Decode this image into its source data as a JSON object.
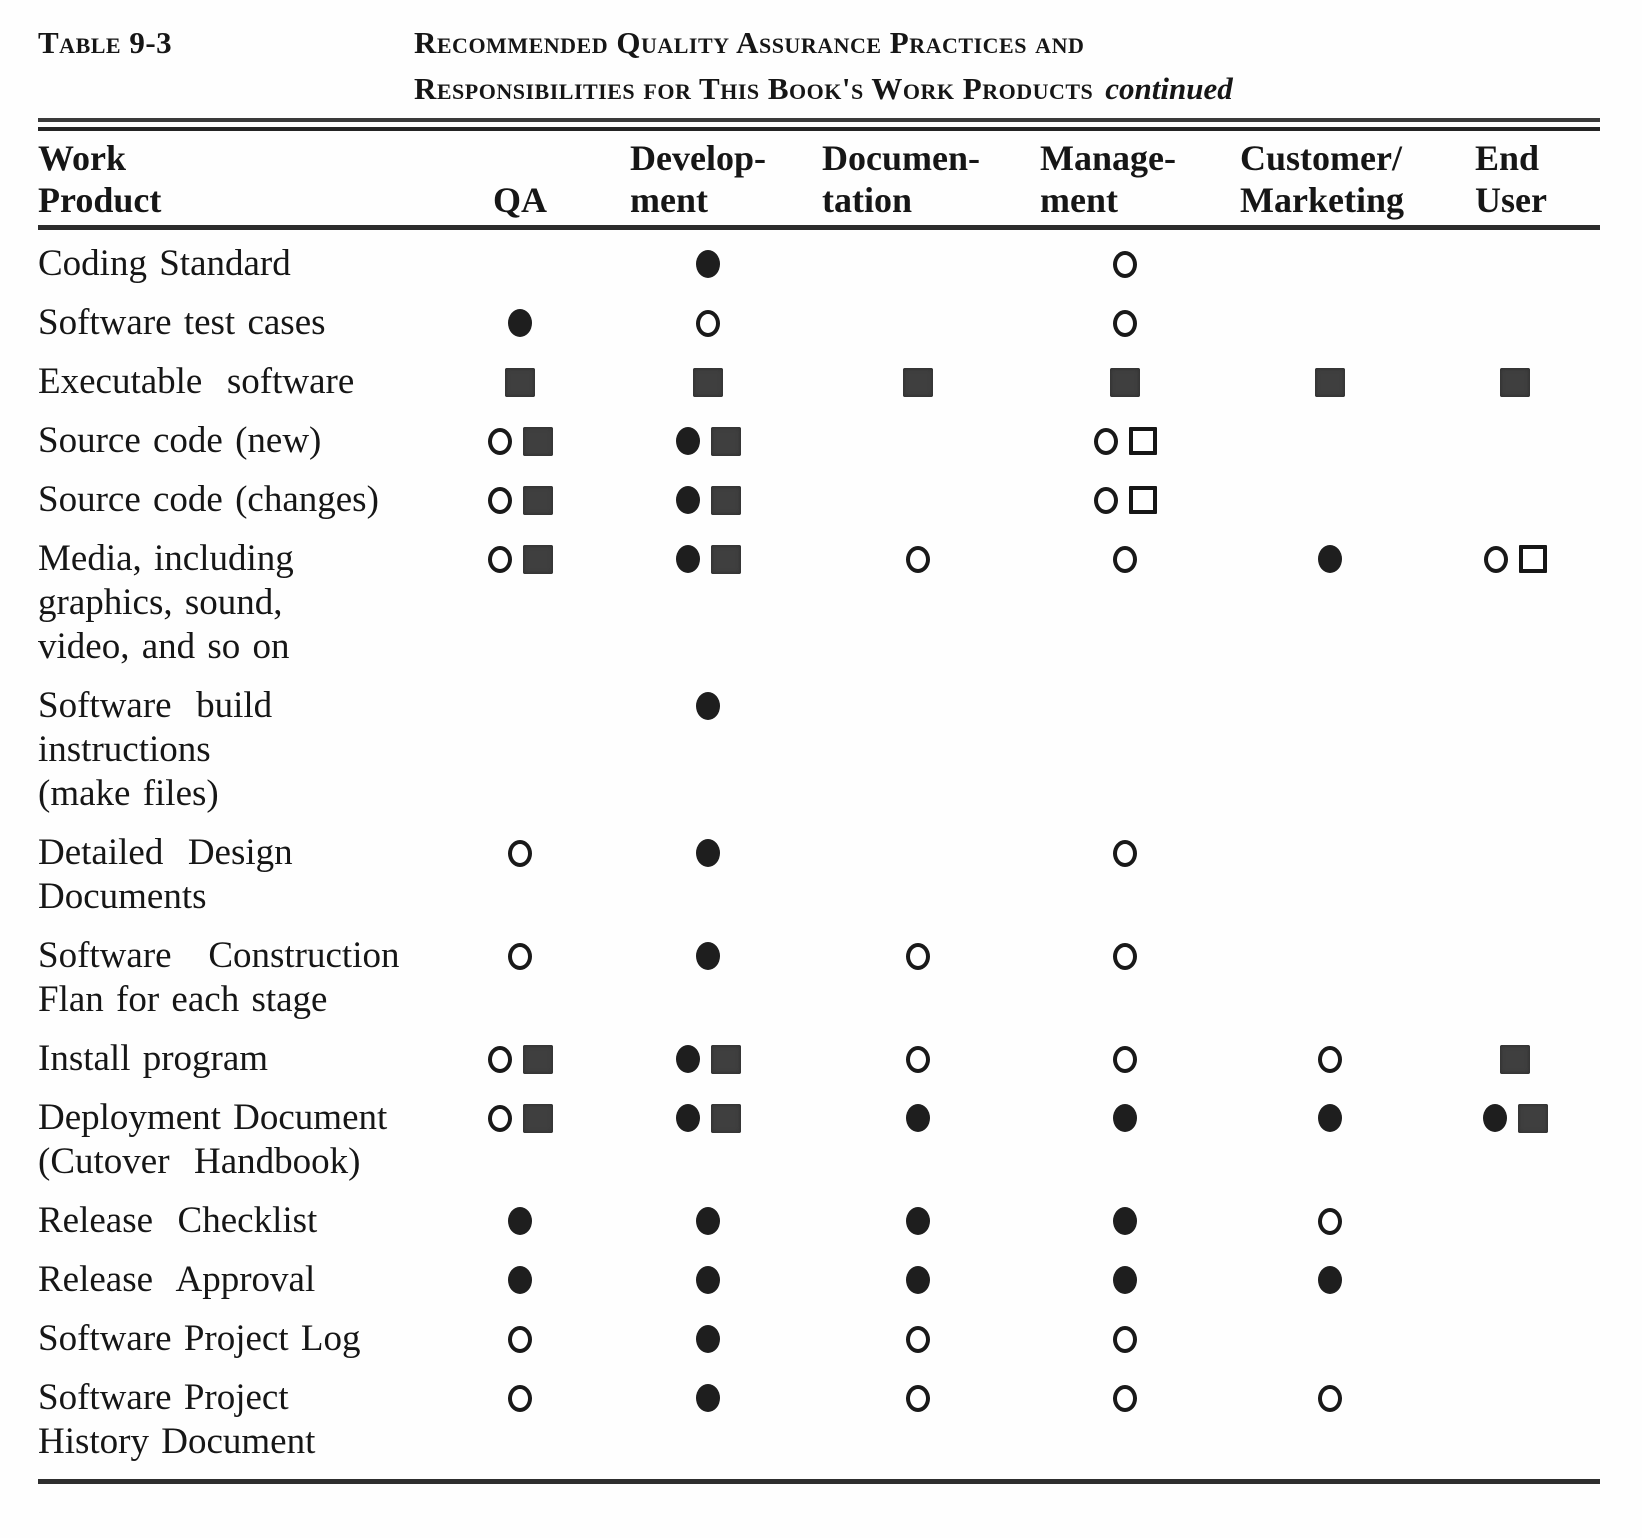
{
  "caption": {
    "label": "Table 9-3",
    "title_line1": "Recommended Quality Assurance Practices and",
    "title_line2": "Responsibilities for This Book's Work Products",
    "continued": "continued"
  },
  "header": {
    "work_product": [
      "Work",
      "Product"
    ],
    "columns": [
      {
        "id": "qa",
        "lines": [
          "QA"
        ]
      },
      {
        "id": "development",
        "lines": [
          "Develop-",
          "ment"
        ]
      },
      {
        "id": "documentation",
        "lines": [
          "Documen-",
          "tation"
        ]
      },
      {
        "id": "management",
        "lines": [
          "Manage-",
          "ment"
        ]
      },
      {
        "id": "customer_marketing",
        "lines": [
          "Customer/",
          "Marketing"
        ]
      },
      {
        "id": "end_user",
        "lines": [
          "End",
          "User"
        ]
      }
    ]
  },
  "symbols": {
    "filled-circle": "●",
    "open-circle": "○",
    "filled-square": "■",
    "open-square": "□"
  },
  "rows": [
    {
      "label_lines": [
        "Coding Standard"
      ],
      "cells": {
        "qa": [],
        "development": [
          "filled-circle"
        ],
        "documentation": [],
        "management": [
          "open-circle"
        ],
        "customer_marketing": [],
        "end_user": []
      }
    },
    {
      "label_lines": [
        "Software test cases"
      ],
      "cells": {
        "qa": [
          "filled-circle"
        ],
        "development": [
          "open-circle"
        ],
        "documentation": [],
        "management": [
          "open-circle"
        ],
        "customer_marketing": [],
        "end_user": []
      }
    },
    {
      "label_lines": [
        "Executable  software"
      ],
      "cells": {
        "qa": [
          "filled-square"
        ],
        "development": [
          "filled-square"
        ],
        "documentation": [
          "filled-square"
        ],
        "management": [
          "filled-square"
        ],
        "customer_marketing": [
          "filled-square"
        ],
        "end_user": [
          "filled-square"
        ]
      }
    },
    {
      "label_lines": [
        "Source code (new)"
      ],
      "cells": {
        "qa": [
          "open-circle",
          "filled-square"
        ],
        "development": [
          "filled-circle",
          "filled-square"
        ],
        "documentation": [],
        "management": [
          "open-circle",
          "open-square"
        ],
        "customer_marketing": [],
        "end_user": []
      }
    },
    {
      "label_lines": [
        "Source code (changes)"
      ],
      "cells": {
        "qa": [
          "open-circle",
          "filled-square"
        ],
        "development": [
          "filled-circle",
          "filled-square"
        ],
        "documentation": [],
        "management": [
          "open-circle",
          "open-square"
        ],
        "customer_marketing": [],
        "end_user": []
      }
    },
    {
      "label_lines": [
        "Media, including",
        "graphics, sound,",
        "video, and so on"
      ],
      "cells": {
        "qa": [
          "open-circle",
          "filled-square"
        ],
        "development": [
          "filled-circle",
          "filled-square"
        ],
        "documentation": [
          "open-circle"
        ],
        "management": [
          "open-circle"
        ],
        "customer_marketing": [
          "filled-circle"
        ],
        "end_user": [
          "open-circle",
          "open-square"
        ]
      }
    },
    {
      "label_lines": [
        "Software  build",
        "instructions",
        "(make files)"
      ],
      "cells": {
        "qa": [],
        "development": [
          "filled-circle"
        ],
        "documentation": [],
        "management": [],
        "customer_marketing": [],
        "end_user": []
      }
    },
    {
      "label_lines": [
        "Detailed  Design",
        "Documents"
      ],
      "cells": {
        "qa": [
          "open-circle"
        ],
        "development": [
          "filled-circle"
        ],
        "documentation": [],
        "management": [
          "open-circle"
        ],
        "customer_marketing": [],
        "end_user": []
      }
    },
    {
      "label_lines": [
        "Software   Construction",
        "Flan for each stage"
      ],
      "cells": {
        "qa": [
          "open-circle"
        ],
        "development": [
          "filled-circle"
        ],
        "documentation": [
          "open-circle"
        ],
        "management": [
          "open-circle"
        ],
        "customer_marketing": [],
        "end_user": []
      }
    },
    {
      "label_lines": [
        "Install program"
      ],
      "cells": {
        "qa": [
          "open-circle",
          "filled-square"
        ],
        "development": [
          "filled-circle",
          "filled-square"
        ],
        "documentation": [
          "open-circle"
        ],
        "management": [
          "open-circle"
        ],
        "customer_marketing": [
          "open-circle"
        ],
        "end_user": [
          "filled-square"
        ]
      }
    },
    {
      "label_lines": [
        "Deployment Document",
        "(Cutover  Handbook)"
      ],
      "cells": {
        "qa": [
          "open-circle",
          "filled-square"
        ],
        "development": [
          "filled-circle",
          "filled-square"
        ],
        "documentation": [
          "filled-circle"
        ],
        "management": [
          "filled-circle"
        ],
        "customer_marketing": [
          "filled-circle"
        ],
        "end_user": [
          "filled-circle",
          "filled-square"
        ]
      }
    },
    {
      "label_lines": [
        "Release  Checklist"
      ],
      "cells": {
        "qa": [
          "filled-circle"
        ],
        "development": [
          "filled-circle"
        ],
        "documentation": [
          "filled-circle"
        ],
        "management": [
          "filled-circle"
        ],
        "customer_marketing": [
          "open-circle"
        ],
        "end_user": []
      }
    },
    {
      "label_lines": [
        "Release  Approval"
      ],
      "cells": {
        "qa": [
          "filled-circle"
        ],
        "development": [
          "filled-circle"
        ],
        "documentation": [
          "filled-circle"
        ],
        "management": [
          "filled-circle"
        ],
        "customer_marketing": [
          "filled-circle"
        ],
        "end_user": []
      }
    },
    {
      "label_lines": [
        "Software Project Log"
      ],
      "cells": {
        "qa": [
          "open-circle"
        ],
        "development": [
          "filled-circle"
        ],
        "documentation": [
          "open-circle"
        ],
        "management": [
          "open-circle"
        ],
        "customer_marketing": [],
        "end_user": []
      }
    },
    {
      "label_lines": [
        "Software Project",
        "History Document"
      ],
      "cells": {
        "qa": [
          "open-circle"
        ],
        "development": [
          "filled-circle"
        ],
        "documentation": [
          "open-circle"
        ],
        "management": [
          "open-circle"
        ],
        "customer_marketing": [
          "open-circle"
        ],
        "end_user": []
      }
    }
  ]
}
